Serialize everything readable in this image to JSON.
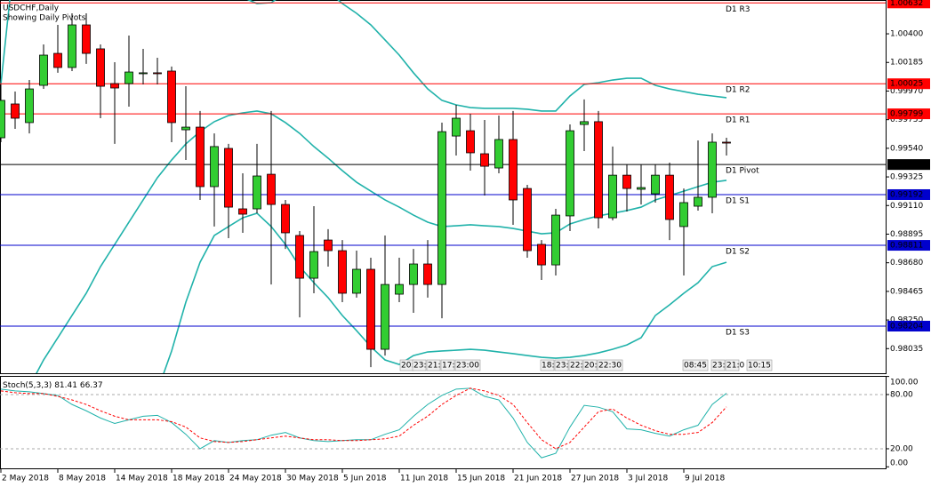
{
  "chart_data": [
    {
      "type": "candlestick",
      "title": "USDCHF,Daily",
      "subtitle": "Showing Daily Pivots",
      "categories": [
        "2 May 2018",
        null,
        null,
        null,
        "8 May 2018",
        null,
        null,
        null,
        "14 May 2018",
        null,
        null,
        null,
        "18 May 2018",
        null,
        null,
        null,
        "24 May 2018",
        null,
        null,
        null,
        "30 May 2018",
        null,
        null,
        null,
        "5 Jun 2018",
        null,
        null,
        null,
        "11 Jun 2018",
        null,
        null,
        null,
        "15 Jun 2018",
        null,
        null,
        null,
        "21 Jun 2018",
        null,
        null,
        null,
        "27 Jun 2018",
        null,
        null,
        null,
        "3 Jul 2018",
        null,
        null,
        null,
        "9 Jul 2018",
        null,
        null,
        null
      ],
      "open": [
        0.99619,
        0.99873,
        0.99733,
        1.00013,
        1.00253,
        1.00147,
        1.00467,
        1.00287,
        1.00026,
        1.00026,
        1.001,
        1.00107,
        1.0012,
        0.99679,
        0.99699,
        0.99252,
        0.99539,
        0.99085,
        0.99085,
        0.99345,
        0.99118,
        0.98885,
        0.98564,
        0.98851,
        0.98771,
        0.98451,
        0.98631,
        0.9803,
        0.98444,
        0.98517,
        0.98671,
        0.98517,
        0.99632,
        0.99672,
        0.99499,
        0.99392,
        0.99606,
        0.99238,
        0.98818,
        0.98664,
        0.99032,
        0.99719,
        0.9974,
        0.99018,
        0.99338,
        0.99232,
        0.99198,
        0.99338,
        0.98952,
        0.99105,
        0.99172,
        0.99586
      ],
      "high": [
        1.0002,
        0.99966,
        1.00053,
        1.0032,
        1.00467,
        1.00554,
        1.00554,
        1.0032,
        1.00187,
        1.00387,
        1.00287,
        1.0022,
        1.00154,
        1.00006,
        0.9982,
        0.99652,
        0.99573,
        0.99352,
        0.99573,
        0.9982,
        0.99152,
        0.98918,
        0.99105,
        0.98932,
        0.98851,
        0.98771,
        0.98718,
        0.98885,
        0.98718,
        0.98784,
        0.98851,
        0.99733,
        0.99866,
        0.99799,
        0.99753,
        0.99786,
        0.9982,
        0.99265,
        0.98851,
        0.99085,
        0.99719,
        0.99907,
        0.9982,
        0.99553,
        0.99419,
        0.99419,
        0.99419,
        0.99432,
        0.99238,
        0.99599,
        0.99652,
        0.99619
      ],
      "low": [
        0.99586,
        0.99686,
        0.99652,
        0.99986,
        1.00107,
        1.0012,
        1.00174,
        0.99766,
        0.99573,
        0.99853,
        1.0002,
        1.0002,
        0.99586,
        0.99452,
        0.99152,
        0.98952,
        0.98865,
        0.98905,
        0.99052,
        0.98517,
        0.98784,
        0.9827,
        0.98451,
        0.98651,
        0.98384,
        0.98418,
        0.97896,
        0.97983,
        0.98384,
        0.98304,
        0.98418,
        0.98263,
        0.99486,
        0.99372,
        0.99185,
        0.99352,
        0.98965,
        0.98718,
        0.98551,
        0.98584,
        0.98918,
        0.99519,
        0.98938,
        0.98998,
        0.99065,
        0.99118,
        0.99132,
        0.98851,
        0.98584,
        0.99072,
        0.99052,
        0.99486
      ],
      "close": [
        0.999,
        0.99766,
        0.99986,
        1.0024,
        1.00147,
        1.00467,
        1.00253,
        1.00006,
        0.99993,
        1.00113,
        1.00107,
        1.001,
        0.99733,
        0.99699,
        0.99252,
        0.99553,
        0.99098,
        0.99045,
        0.99332,
        0.99118,
        0.98905,
        0.98564,
        0.98764,
        0.98771,
        0.98451,
        0.98631,
        0.9803,
        0.98517,
        0.98517,
        0.98671,
        0.98517,
        0.99665,
        0.99766,
        0.99506,
        0.99405,
        0.99606,
        0.99152,
        0.98771,
        0.98664,
        0.99038,
        0.99672,
        0.9974,
        0.99018,
        0.99338,
        0.99238,
        0.99245,
        0.99338,
        0.99005,
        0.99132,
        0.99172,
        0.99586,
        0.99579
      ],
      "up_color": "#32cd32",
      "down_color": "#ff0000",
      "bands": [
        {
          "color": "#20b2aa",
          "values": [
            1.0002,
            1.01035,
            null,
            null,
            null,
            null,
            null,
            null,
            null,
            null,
            null,
            null,
            null,
            null,
            null,
            null,
            1.00788,
            1.00674,
            1.00627,
            1.00634,
            1.00707,
            null,
            null,
            1.00721,
            1.00627,
            1.00554,
            1.00467,
            1.00354,
            1.0024,
            1.00107,
            0.99986,
            0.999,
            0.99866,
            0.99846,
            0.9984,
            0.9984,
            0.9984,
            0.99833,
            0.9982,
            0.9982,
            0.99933,
            1.0002,
            1.00033,
            1.00053,
            1.00066,
            1.00066,
            1.00013,
            0.99986,
            0.99966,
            0.99946,
            0.99933,
            0.9992
          ]
        },
        {
          "color": "#20b2aa",
          "values": [
            null,
            null,
            0.97749,
            0.9795,
            0.98117,
            0.98284,
            0.98451,
            0.98651,
            0.98818,
            0.98985,
            0.99152,
            0.99319,
            0.99452,
            0.99573,
            0.99666,
            0.9974,
            0.99786,
            0.99806,
            0.9982,
            0.99799,
            0.99733,
            0.99652,
            0.99553,
            0.99466,
            0.99372,
            0.99285,
            0.99218,
            0.99152,
            0.99098,
            0.99038,
            0.98985,
            0.98952,
            0.98958,
            0.98965,
            0.98958,
            0.98952,
            0.98938,
            0.98918,
            0.98898,
            0.98905,
            0.98972,
            0.99005,
            0.99032,
            0.99052,
            0.99072,
            0.99098,
            0.99152,
            0.99185,
            0.99218,
            0.99252,
            0.99285,
            0.99299
          ]
        },
        {
          "color": "#20b2aa",
          "values": [
            null,
            null,
            null,
            null,
            null,
            null,
            null,
            null,
            null,
            null,
            null,
            0.97716,
            0.98017,
            0.98384,
            0.98684,
            0.98885,
            0.98952,
            0.99018,
            0.99052,
            0.98952,
            0.98818,
            0.98651,
            0.9853,
            0.98418,
            0.98284,
            0.9817,
            0.9805,
            0.9795,
            0.97916,
            0.97983,
            0.9801,
            0.98017,
            0.98023,
            0.9803,
            0.98023,
            0.9801,
            0.97997,
            0.97983,
            0.9797,
            0.97963,
            0.9797,
            0.97983,
            0.98003,
            0.9803,
            0.98063,
            0.98117,
            0.98284,
            0.98364,
            0.98451,
            0.9853,
            0.98651,
            0.98684
          ]
        }
      ],
      "pivots": [
        {
          "name": "D1 R3",
          "value": 1.00632,
          "color": "#ff0000"
        },
        {
          "name": "D1 R2",
          "value": 1.00025,
          "color": "#ff0000"
        },
        {
          "name": "D1 R1",
          "value": 0.99799,
          "color": "#ff0000"
        },
        {
          "name": "D1 Pivot",
          "value": 0.99418,
          "color": "#000000"
        },
        {
          "name": "D1 S1",
          "value": 0.99192,
          "color": "#0000cd"
        },
        {
          "name": "D1 S2",
          "value": 0.98811,
          "color": "#0000cd"
        },
        {
          "name": "D1 S3",
          "value": 0.98204,
          "color": "#0000cd"
        }
      ],
      "time_labels": [
        "20:",
        "23:",
        "21:",
        "17:",
        "23:00",
        "18:",
        "23:",
        "22:",
        "20:",
        "22:30",
        "08:45",
        "23:",
        "21:0",
        "10:15"
      ],
      "ylim": [
        0.9785,
        1.00654
      ],
      "yticks": [
        {
          "value": 1.004,
          "label": "1.00400"
        },
        1.00185,
        {
          "value": 0.9997,
          "label": "0.99970"
        },
        0.99755,
        {
          "value": 0.9954,
          "label": "0.99540"
        },
        0.99325,
        {
          "value": 0.9911,
          "label": "0.99110"
        },
        0.98895,
        {
          "value": 0.9868,
          "label": "0.98680"
        },
        0.98465,
        {
          "value": 0.9825,
          "label": "0.98250"
        },
        0.98035
      ]
    },
    {
      "type": "line",
      "title": "Stoch(5,3,3)",
      "series": [
        {
          "color": "#20b2aa",
          "values": [
            86,
            84,
            83,
            81,
            79,
            69,
            62,
            54,
            48,
            52,
            56,
            57,
            49,
            36,
            20,
            29,
            27,
            29,
            30,
            35,
            38,
            32,
            29,
            28,
            29,
            30,
            30,
            36,
            41,
            56,
            69,
            79,
            86,
            87,
            78,
            74,
            54,
            27,
            10,
            15,
            44,
            68,
            66,
            61,
            42,
            41,
            37,
            34,
            41,
            46,
            69,
            81.41
          ]
        },
        {
          "color": "#ff0000",
          "dashed": true,
          "values": [
            84,
            82,
            81,
            81,
            78,
            74,
            69,
            62,
            56,
            52,
            52,
            52,
            50,
            44,
            32,
            28,
            27,
            28,
            30,
            32,
            34,
            32,
            30,
            30,
            29,
            29,
            30,
            31,
            34,
            46,
            56,
            69,
            79,
            87,
            84,
            79,
            69,
            49,
            30,
            20,
            27,
            44,
            61,
            64,
            54,
            46,
            40,
            36,
            36,
            38,
            49,
            66.37
          ]
        }
      ],
      "levels": [
        80,
        20
      ],
      "ylim": [
        0,
        100
      ],
      "yticks": [
        {
          "value": 100,
          "label": "100.00"
        },
        {
          "value": 80,
          "label": "80.00"
        },
        {
          "value": 20,
          "label": "20.00"
        },
        {
          "value": 0,
          "label": "0.00"
        }
      ]
    }
  ]
}
